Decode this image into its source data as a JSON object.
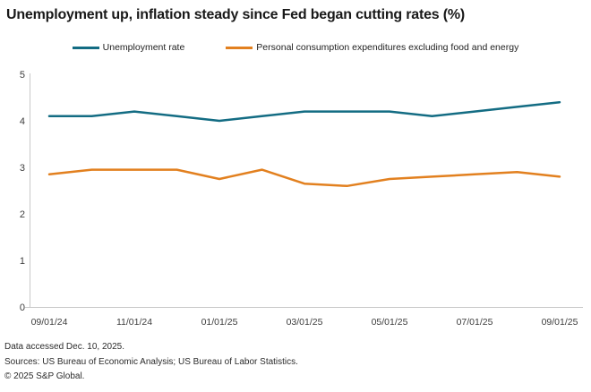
{
  "title": "Unemployment up, inflation steady since Fed began cutting rates (%)",
  "legend": [
    {
      "label": "Unemployment rate"
    },
    {
      "label": "Personal consumption expenditures excluding food and energy"
    }
  ],
  "chart_data": {
    "type": "line",
    "x": [
      "09/01/24",
      "10/01/24",
      "11/01/24",
      "12/01/24",
      "01/01/25",
      "02/01/25",
      "03/01/25",
      "04/01/25",
      "05/01/25",
      "06/01/25",
      "07/01/25",
      "08/01/25",
      "09/01/25"
    ],
    "x_tick_labels": [
      "09/01/24",
      "11/01/24",
      "01/01/25",
      "03/01/25",
      "05/01/25",
      "07/01/25",
      "09/01/25"
    ],
    "y_ticks": [
      0,
      1,
      2,
      3,
      4,
      5
    ],
    "ylim": [
      0,
      5
    ],
    "grid": false,
    "legend_position": "top-center",
    "title": "Unemployment up, inflation steady since Fed began cutting rates (%)",
    "xlabel": "",
    "ylabel": "",
    "series": [
      {
        "name": "Unemployment rate",
        "color": "#136c83",
        "values": [
          4.1,
          4.1,
          4.2,
          4.1,
          4.0,
          4.1,
          4.2,
          4.2,
          4.2,
          4.1,
          4.2,
          4.3,
          4.4
        ]
      },
      {
        "name": "Personal consumption expenditures excluding food and energy",
        "color": "#e2801f",
        "values": [
          2.85,
          2.95,
          2.95,
          2.95,
          2.75,
          2.95,
          2.65,
          2.6,
          2.75,
          2.8,
          2.85,
          2.9,
          2.8
        ]
      }
    ]
  },
  "axis": {
    "line_color": "#c9c9c9",
    "tick_label_color": "#3d3d3d"
  },
  "footer": {
    "line1": "Data accessed Dec. 10, 2025.",
    "line2": "Sources: US Bureau of Economic Analysis; US Bureau of Labor Statistics.",
    "line3": "© 2025 S&P Global."
  }
}
